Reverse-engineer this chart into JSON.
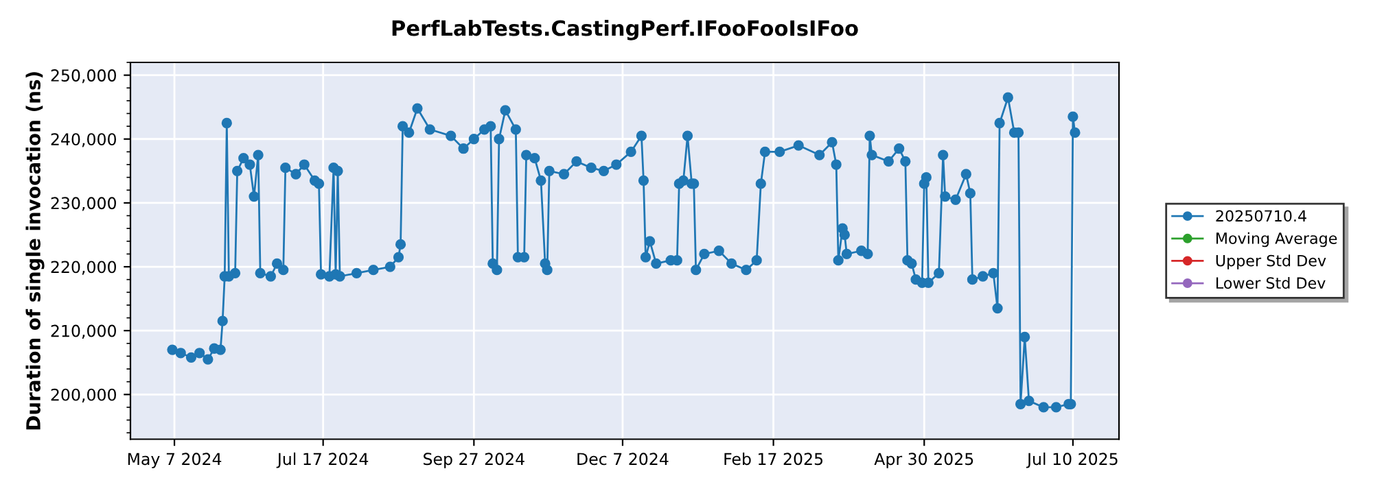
{
  "chart_data": {
    "type": "line",
    "title": "PerfLabTests.CastingPerf.IFooFooIsIFoo",
    "ylabel": "Duration of single invocation (ns)",
    "xlim": [
      "2024-04-16",
      "2025-08-01"
    ],
    "ylim": [
      193000,
      252000
    ],
    "xticks": [
      {
        "value": "2024-05-07",
        "label": "May 7 2024"
      },
      {
        "value": "2024-07-17",
        "label": "Jul 17 2024"
      },
      {
        "value": "2024-09-27",
        "label": "Sep 27 2024"
      },
      {
        "value": "2024-12-07",
        "label": "Dec 7 2024"
      },
      {
        "value": "2025-02-17",
        "label": "Feb 17 2025"
      },
      {
        "value": "2025-04-30",
        "label": "Apr 30 2025"
      },
      {
        "value": "2025-07-10",
        "label": "Jul 10 2025"
      }
    ],
    "yticks": [
      {
        "value": 200000,
        "label": "200,000"
      },
      {
        "value": 210000,
        "label": "210,000"
      },
      {
        "value": 220000,
        "label": "220,000"
      },
      {
        "value": 230000,
        "label": "230,000"
      },
      {
        "value": 240000,
        "label": "240,000"
      },
      {
        "value": 250000,
        "label": "250,000"
      }
    ],
    "grid": true,
    "legend": "right",
    "marker": "circle",
    "line_style": "solid",
    "series": [
      {
        "name": "20250710.4",
        "color": "#1f77b4",
        "x": [
          "2024-05-06",
          "2024-05-10",
          "2024-05-15",
          "2024-05-19",
          "2024-05-23",
          "2024-05-26",
          "2024-05-29",
          "2024-05-30",
          "2024-05-31",
          "2024-06-01",
          "2024-06-02",
          "2024-06-05",
          "2024-06-06",
          "2024-06-09",
          "2024-06-12",
          "2024-06-14",
          "2024-06-16",
          "2024-06-17",
          "2024-06-22",
          "2024-06-25",
          "2024-06-28",
          "2024-06-29",
          "2024-07-04",
          "2024-07-08",
          "2024-07-13",
          "2024-07-15",
          "2024-07-16",
          "2024-07-20",
          "2024-07-22",
          "2024-07-23",
          "2024-07-24",
          "2024-07-25",
          "2024-08-02",
          "2024-08-10",
          "2024-08-18",
          "2024-08-22",
          "2024-08-23",
          "2024-08-24",
          "2024-08-27",
          "2024-08-31",
          "2024-09-06",
          "2024-09-16",
          "2024-09-22",
          "2024-09-27",
          "2024-10-02",
          "2024-10-05",
          "2024-10-06",
          "2024-10-08",
          "2024-10-09",
          "2024-10-12",
          "2024-10-17",
          "2024-10-18",
          "2024-10-21",
          "2024-10-22",
          "2024-10-26",
          "2024-10-29",
          "2024-10-31",
          "2024-11-01",
          "2024-11-02",
          "2024-11-09",
          "2024-11-15",
          "2024-11-22",
          "2024-11-28",
          "2024-12-04",
          "2024-12-11",
          "2024-12-16",
          "2024-12-17",
          "2024-12-18",
          "2024-12-20",
          "2024-12-23",
          "2024-12-30",
          "2025-01-02",
          "2025-01-03",
          "2025-01-05",
          "2025-01-07",
          "2025-01-09",
          "2025-01-10",
          "2025-01-11",
          "2025-01-15",
          "2025-01-22",
          "2025-01-28",
          "2025-02-04",
          "2025-02-09",
          "2025-02-11",
          "2025-02-13",
          "2025-02-20",
          "2025-03-01",
          "2025-03-11",
          "2025-03-17",
          "2025-03-19",
          "2025-03-20",
          "2025-03-22",
          "2025-03-23",
          "2025-03-24",
          "2025-03-31",
          "2025-04-03",
          "2025-04-04",
          "2025-04-05",
          "2025-04-13",
          "2025-04-18",
          "2025-04-21",
          "2025-04-22",
          "2025-04-24",
          "2025-04-26",
          "2025-04-29",
          "2025-04-30",
          "2025-05-01",
          "2025-05-02",
          "2025-05-07",
          "2025-05-09",
          "2025-05-10",
          "2025-05-15",
          "2025-05-20",
          "2025-05-22",
          "2025-05-23",
          "2025-05-28",
          "2025-06-02",
          "2025-06-04",
          "2025-06-05",
          "2025-06-09",
          "2025-06-12",
          "2025-06-14",
          "2025-06-15",
          "2025-06-17",
          "2025-06-19",
          "2025-06-26",
          "2025-07-02",
          "2025-07-08",
          "2025-07-09",
          "2025-07-10",
          "2025-07-11"
        ],
        "values": [
          207000,
          206500,
          205800,
          206500,
          205500,
          207200,
          207000,
          211500,
          218500,
          242500,
          218500,
          219000,
          235000,
          237000,
          236000,
          231000,
          237500,
          219000,
          218500,
          220500,
          219500,
          235500,
          234500,
          236000,
          233500,
          233000,
          218800,
          218500,
          235500,
          218800,
          235000,
          218500,
          219000,
          219500,
          220000,
          221500,
          223500,
          242000,
          241000,
          244800,
          241500,
          240500,
          238500,
          240000,
          241500,
          242000,
          220500,
          219500,
          240000,
          244500,
          241500,
          221500,
          221500,
          237500,
          237000,
          233500,
          220500,
          219500,
          235000,
          234500,
          236500,
          235500,
          235000,
          236000,
          238000,
          240500,
          233500,
          221500,
          224000,
          220500,
          221000,
          221000,
          233000,
          233500,
          240500,
          233000,
          233000,
          219500,
          222000,
          222500,
          220500,
          219500,
          221000,
          233000,
          238000,
          238000,
          239000,
          237500,
          239500,
          236000,
          221000,
          226000,
          225000,
          222000,
          222500,
          222000,
          240500,
          237500,
          236500,
          238500,
          236500,
          221000,
          220500,
          218000,
          217500,
          233000,
          234000,
          217500,
          219000,
          237500,
          231000,
          230500,
          234500,
          231500,
          218000,
          218500,
          219000,
          213500,
          242500,
          246500,
          241000,
          241000,
          198500,
          209000,
          199000,
          198000,
          198000,
          198500,
          198500,
          243500,
          241000
        ]
      },
      {
        "name": "Moving Average",
        "color": "#2ca02c"
      },
      {
        "name": "Upper Std Dev",
        "color": "#d62728"
      },
      {
        "name": "Lower Std Dev",
        "color": "#9467bd"
      }
    ]
  }
}
